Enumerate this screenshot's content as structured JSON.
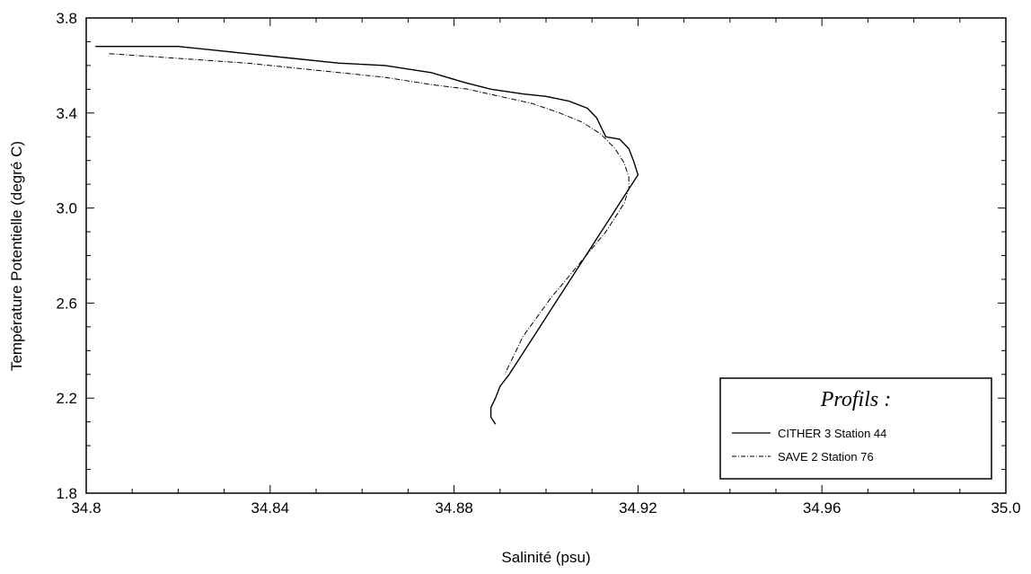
{
  "chart_data": {
    "type": "line",
    "xlabel": "Salinité (psu)",
    "ylabel": "Température Potentielle (degré C)",
    "xlim": [
      34.8,
      35.0
    ],
    "ylim": [
      1.8,
      3.8
    ],
    "x_ticks": [
      "34.8",
      "34.84",
      "34.88",
      "34.92",
      "34.96",
      "35.0"
    ],
    "y_ticks": [
      "1.8",
      "2.2",
      "2.6",
      "3.0",
      "3.4",
      "3.8"
    ],
    "grid": false,
    "legend": {
      "title": "Profils :",
      "position": "bottom-right",
      "entries": [
        "CITHER 3 Station 44",
        "SAVE 2 Station 76"
      ]
    },
    "series": [
      {
        "name": "CITHER 3 Station 44",
        "style": "solid",
        "color": "#000000",
        "x": [
          34.802,
          34.82,
          34.835,
          34.845,
          34.855,
          34.865,
          34.875,
          34.882,
          34.888,
          34.895,
          34.9,
          34.905,
          34.909,
          34.911,
          34.912,
          34.913,
          34.916,
          34.918,
          34.919,
          34.92,
          34.918,
          34.916,
          34.914,
          34.912,
          34.91,
          34.908,
          34.906,
          34.904,
          34.902,
          34.9,
          34.898,
          34.896,
          34.894,
          34.892,
          34.89,
          34.889,
          34.888,
          34.888,
          34.889
        ],
        "y": [
          3.68,
          3.68,
          3.65,
          3.63,
          3.61,
          3.6,
          3.57,
          3.53,
          3.5,
          3.48,
          3.47,
          3.45,
          3.42,
          3.38,
          3.34,
          3.3,
          3.29,
          3.25,
          3.2,
          3.14,
          3.08,
          3.02,
          2.96,
          2.9,
          2.84,
          2.78,
          2.72,
          2.66,
          2.6,
          2.54,
          2.48,
          2.42,
          2.36,
          2.3,
          2.25,
          2.2,
          2.16,
          2.12,
          2.09
        ]
      },
      {
        "name": "SAVE 2 Station 76",
        "style": "dashed",
        "color": "#000000",
        "x": [
          34.805,
          34.82,
          34.835,
          34.85,
          34.865,
          34.875,
          34.883,
          34.89,
          34.897,
          34.903,
          34.908,
          34.912,
          34.915,
          34.917,
          34.918,
          34.918,
          34.917,
          34.915,
          34.913,
          34.91,
          34.907,
          34.904,
          34.901,
          34.898,
          34.895,
          34.893,
          34.891
        ],
        "y": [
          3.65,
          3.63,
          3.61,
          3.58,
          3.55,
          3.52,
          3.5,
          3.47,
          3.44,
          3.4,
          3.36,
          3.31,
          3.25,
          3.19,
          3.13,
          3.08,
          3.02,
          2.96,
          2.9,
          2.83,
          2.76,
          2.69,
          2.62,
          2.54,
          2.46,
          2.38,
          2.3
        ]
      }
    ]
  }
}
